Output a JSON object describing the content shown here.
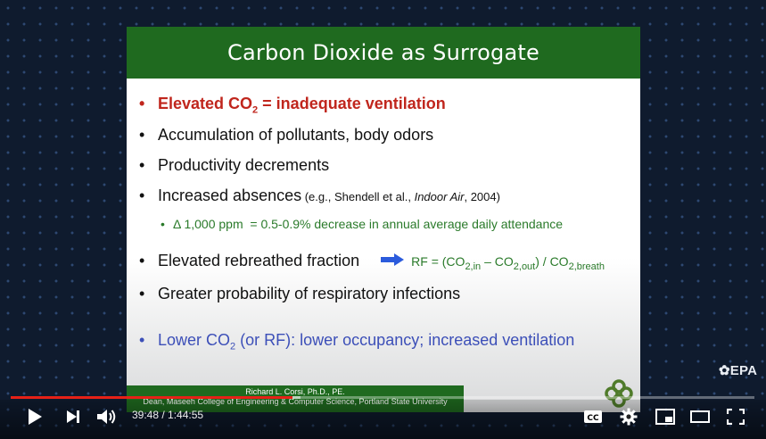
{
  "slide": {
    "title": "Carbon Dioxide as Surrogate",
    "bullet1": {
      "pre": "Elevated CO",
      "sub": "2",
      "post": " = inadequate ventilation"
    },
    "bullet2": "Accumulation of pollutants, body odors",
    "bullet3": "Productivity decrements",
    "bullet4": {
      "main": "Increased absences",
      "cite_pre": " (e.g., Shendell et al., ",
      "cite_journal": "Indoor Air",
      "cite_post": ", 2004)"
    },
    "sub_bullet": "Δ 1,000 ppm  = 0.5-0.9% decrease in annual average daily attendance",
    "bullet5": "Elevated rebreathed fraction",
    "rf": {
      "p1": "RF = (CO",
      "s1": "2,in",
      "p2": " – CO",
      "s2": "2,out",
      "p3": ") / CO",
      "s3": "2,breath"
    },
    "bullet6": "Greater probability of respiratory infections",
    "bullet7": {
      "pre": "Lower CO",
      "sub": "2",
      "post": " (or RF): lower occupancy; increased ventilation"
    },
    "presenter_name": "Richard L. Corsi, Ph.D., PE.",
    "presenter_title": "Dean, Maseeh College of Engineering & Computer Science, Portland State University"
  },
  "watermark": "EPA",
  "player": {
    "current_time": "39:48",
    "duration": "1:44:55",
    "time_display": "39:48 / 1:44:55",
    "progress_fraction": 0.379,
    "buffer_fraction": 0.39,
    "colors": {
      "progress": "#e62117",
      "title_bar": "#1f6a1f"
    },
    "icons": [
      "play-icon",
      "next-icon",
      "volume-icon",
      "cc-icon",
      "settings-icon",
      "miniplayer-icon",
      "theater-icon",
      "fullscreen-icon"
    ]
  }
}
